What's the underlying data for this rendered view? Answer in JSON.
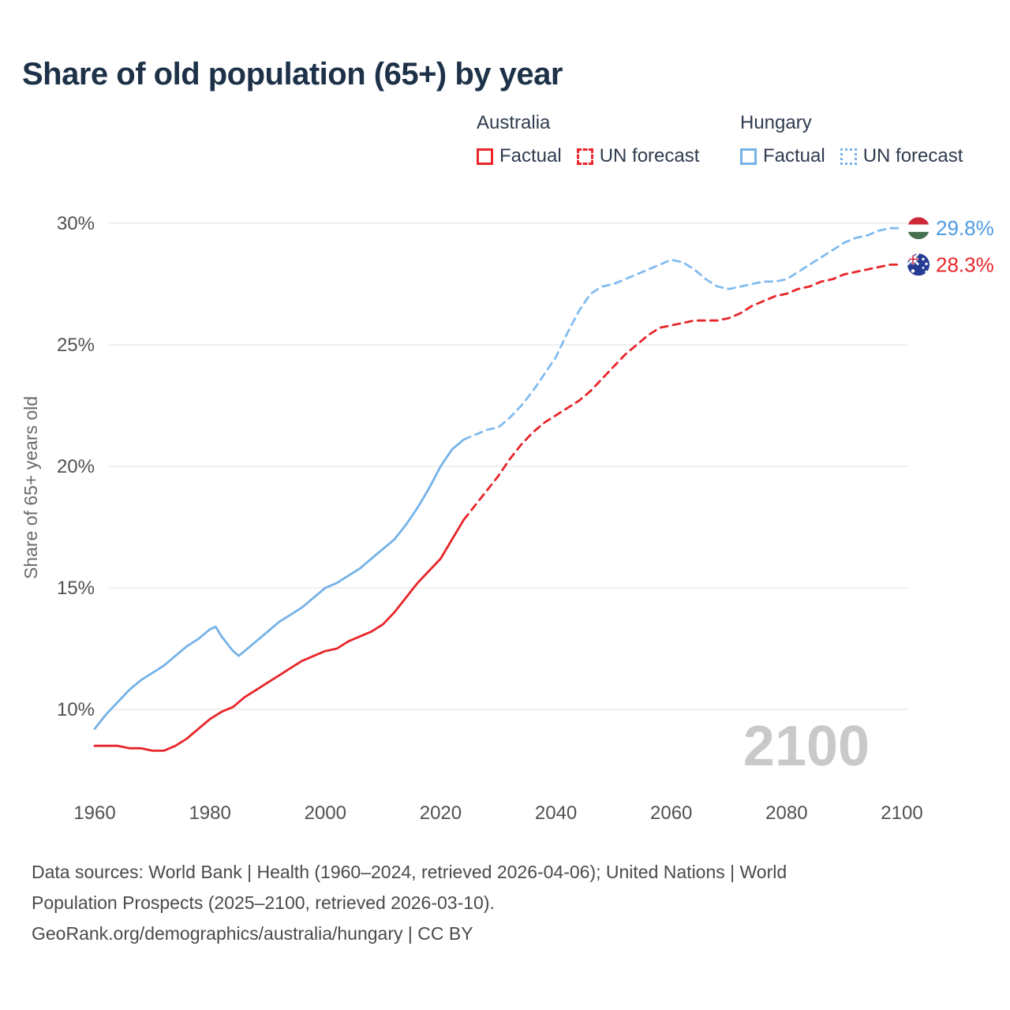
{
  "title": "Share of old population (65+) by year",
  "watermark": "2100",
  "legend": {
    "groups": [
      {
        "country": "Australia",
        "color": "#e8262a",
        "items": [
          {
            "label": "Factual",
            "style": "solid"
          },
          {
            "label": "UN forecast",
            "style": "dashed"
          }
        ]
      },
      {
        "country": "Hungary",
        "color": "#74b2e8",
        "items": [
          {
            "label": "Factual",
            "style": "solid"
          },
          {
            "label": "UN forecast",
            "style": "dotted"
          }
        ]
      }
    ]
  },
  "end_labels": [
    {
      "country": "Hungary",
      "value": "29.8%",
      "color": "#4d9be0",
      "flag": "hungary-flag"
    },
    {
      "country": "Australia",
      "value": "28.3%",
      "color": "#e8262a",
      "flag": "australia-flag"
    }
  ],
  "footer": {
    "lines": [
      "Data sources: World Bank | Health (1960–2024, retrieved 2026-04-06); United Nations | World",
      "Population Prospects (2025–2100, retrieved 2026-03-10).",
      "GeoRank.org/demographics/australia/hungary | CC BY"
    ]
  },
  "chart_data": {
    "type": "line",
    "title": "Share of old population (65+) by year",
    "xlabel": "",
    "ylabel": "Share of 65+ years old",
    "xlim": [
      1960,
      2100
    ],
    "ylim": [
      8,
      31
    ],
    "x_ticks": [
      1960,
      1980,
      2000,
      2020,
      2040,
      2060,
      2080,
      2100
    ],
    "y_ticks": [
      "10%",
      "15%",
      "20%",
      "25%",
      "30%"
    ],
    "grid": true,
    "legend_position": "top",
    "series": [
      {
        "id": "australia-factual",
        "name": "Australia Factual",
        "color": "#e8262a",
        "dash": null,
        "points": [
          [
            1960,
            8.5
          ],
          [
            1962,
            8.5
          ],
          [
            1964,
            8.5
          ],
          [
            1966,
            8.4
          ],
          [
            1968,
            8.4
          ],
          [
            1970,
            8.3
          ],
          [
            1972,
            8.3
          ],
          [
            1974,
            8.5
          ],
          [
            1976,
            8.8
          ],
          [
            1978,
            9.2
          ],
          [
            1980,
            9.6
          ],
          [
            1982,
            9.9
          ],
          [
            1984,
            10.1
          ],
          [
            1986,
            10.5
          ],
          [
            1988,
            10.8
          ],
          [
            1990,
            11.1
          ],
          [
            1992,
            11.4
          ],
          [
            1994,
            11.7
          ],
          [
            1996,
            12.0
          ],
          [
            1998,
            12.2
          ],
          [
            2000,
            12.4
          ],
          [
            2002,
            12.5
          ],
          [
            2004,
            12.8
          ],
          [
            2006,
            13.0
          ],
          [
            2008,
            13.2
          ],
          [
            2010,
            13.5
          ],
          [
            2012,
            14.0
          ],
          [
            2014,
            14.6
          ],
          [
            2016,
            15.2
          ],
          [
            2018,
            15.7
          ],
          [
            2020,
            16.2
          ],
          [
            2022,
            17.0
          ],
          [
            2024,
            17.8
          ]
        ]
      },
      {
        "id": "australia-un-forecast",
        "name": "Australia UN forecast",
        "color": "#e8262a",
        "dash": "9 7",
        "points": [
          [
            2024,
            17.8
          ],
          [
            2026,
            18.4
          ],
          [
            2028,
            19.0
          ],
          [
            2030,
            19.6
          ],
          [
            2032,
            20.3
          ],
          [
            2034,
            20.9
          ],
          [
            2036,
            21.4
          ],
          [
            2038,
            21.8
          ],
          [
            2040,
            22.1
          ],
          [
            2042,
            22.4
          ],
          [
            2044,
            22.7
          ],
          [
            2046,
            23.1
          ],
          [
            2048,
            23.6
          ],
          [
            2050,
            24.1
          ],
          [
            2052,
            24.6
          ],
          [
            2054,
            25.0
          ],
          [
            2056,
            25.4
          ],
          [
            2058,
            25.7
          ],
          [
            2060,
            25.8
          ],
          [
            2062,
            25.9
          ],
          [
            2064,
            26.0
          ],
          [
            2066,
            26.0
          ],
          [
            2068,
            26.0
          ],
          [
            2070,
            26.1
          ],
          [
            2072,
            26.3
          ],
          [
            2074,
            26.6
          ],
          [
            2076,
            26.8
          ],
          [
            2078,
            27.0
          ],
          [
            2080,
            27.1
          ],
          [
            2082,
            27.3
          ],
          [
            2084,
            27.4
          ],
          [
            2086,
            27.6
          ],
          [
            2088,
            27.7
          ],
          [
            2090,
            27.9
          ],
          [
            2092,
            28.0
          ],
          [
            2094,
            28.1
          ],
          [
            2096,
            28.2
          ],
          [
            2098,
            28.3
          ],
          [
            2100,
            28.3
          ]
        ]
      },
      {
        "id": "hungary-factual",
        "name": "Hungary Factual",
        "color": "#74b2e8",
        "dash": null,
        "points": [
          [
            1960,
            9.2
          ],
          [
            1962,
            9.8
          ],
          [
            1964,
            10.3
          ],
          [
            1966,
            10.8
          ],
          [
            1968,
            11.2
          ],
          [
            1970,
            11.5
          ],
          [
            1972,
            11.8
          ],
          [
            1974,
            12.2
          ],
          [
            1976,
            12.6
          ],
          [
            1978,
            12.9
          ],
          [
            1980,
            13.3
          ],
          [
            1981,
            13.4
          ],
          [
            1982,
            13.0
          ],
          [
            1984,
            12.4
          ],
          [
            1985,
            12.2
          ],
          [
            1986,
            12.4
          ],
          [
            1988,
            12.8
          ],
          [
            1990,
            13.2
          ],
          [
            1992,
            13.6
          ],
          [
            1994,
            13.9
          ],
          [
            1996,
            14.2
          ],
          [
            1998,
            14.6
          ],
          [
            2000,
            15.0
          ],
          [
            2002,
            15.2
          ],
          [
            2004,
            15.5
          ],
          [
            2006,
            15.8
          ],
          [
            2008,
            16.2
          ],
          [
            2010,
            16.6
          ],
          [
            2012,
            17.0
          ],
          [
            2014,
            17.6
          ],
          [
            2016,
            18.3
          ],
          [
            2018,
            19.1
          ],
          [
            2020,
            20.0
          ],
          [
            2022,
            20.7
          ],
          [
            2024,
            21.1
          ]
        ]
      },
      {
        "id": "hungary-un-forecast",
        "name": "Hungary UN forecast",
        "color": "#82bcee",
        "dash": "9 7",
        "points": [
          [
            2024,
            21.1
          ],
          [
            2026,
            21.3
          ],
          [
            2028,
            21.5
          ],
          [
            2030,
            21.6
          ],
          [
            2032,
            22.0
          ],
          [
            2034,
            22.5
          ],
          [
            2036,
            23.1
          ],
          [
            2038,
            23.8
          ],
          [
            2040,
            24.5
          ],
          [
            2042,
            25.5
          ],
          [
            2044,
            26.4
          ],
          [
            2046,
            27.1
          ],
          [
            2048,
            27.4
          ],
          [
            2050,
            27.5
          ],
          [
            2052,
            27.7
          ],
          [
            2054,
            27.9
          ],
          [
            2056,
            28.1
          ],
          [
            2058,
            28.3
          ],
          [
            2060,
            28.5
          ],
          [
            2062,
            28.4
          ],
          [
            2064,
            28.1
          ],
          [
            2066,
            27.7
          ],
          [
            2068,
            27.4
          ],
          [
            2070,
            27.3
          ],
          [
            2072,
            27.4
          ],
          [
            2074,
            27.5
          ],
          [
            2076,
            27.6
          ],
          [
            2078,
            27.6
          ],
          [
            2080,
            27.7
          ],
          [
            2082,
            28.0
          ],
          [
            2084,
            28.3
          ],
          [
            2086,
            28.6
          ],
          [
            2088,
            28.9
          ],
          [
            2090,
            29.2
          ],
          [
            2092,
            29.4
          ],
          [
            2094,
            29.5
          ],
          [
            2096,
            29.7
          ],
          [
            2098,
            29.8
          ],
          [
            2100,
            29.8
          ]
        ]
      }
    ]
  }
}
